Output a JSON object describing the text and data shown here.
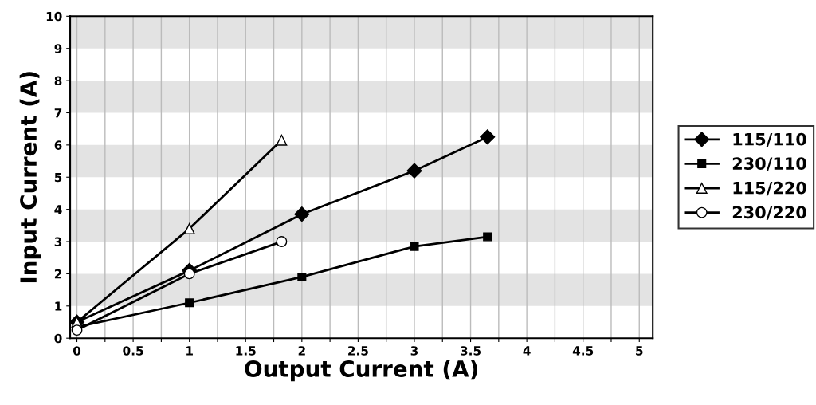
{
  "chart_data": {
    "type": "line",
    "xlabel": "Output Current (A)",
    "ylabel": "Input Current (A)",
    "xlim": [
      -0.06,
      5.12
    ],
    "ylim": [
      0,
      10
    ],
    "xticks": [
      0,
      {
        "value": 0.25,
        "label": null
      },
      0.5,
      {
        "value": 0.75,
        "label": null
      },
      1,
      {
        "value": 1.25,
        "label": null
      },
      1.5,
      {
        "value": 1.75,
        "label": null
      },
      2,
      {
        "value": 2.25,
        "label": null
      },
      2.5,
      {
        "value": 2.75,
        "label": null
      },
      3,
      {
        "value": 3.25,
        "label": null
      },
      3.5,
      {
        "value": 3.75,
        "label": null
      },
      4,
      {
        "value": 4.25,
        "label": null
      },
      4.5,
      {
        "value": 4.75,
        "label": null
      },
      5
    ],
    "yticks": [
      0,
      1,
      2,
      3,
      4,
      5,
      6,
      7,
      8,
      9,
      10
    ],
    "grid": "x",
    "legend": "right",
    "bands": [
      {
        "axis": "y",
        "from": 1,
        "to": 2,
        "color": "#e3e3e3"
      },
      {
        "axis": "y",
        "from": 3,
        "to": 4,
        "color": "#e3e3e3"
      },
      {
        "axis": "y",
        "from": 5,
        "to": 6,
        "color": "#e3e3e3"
      },
      {
        "axis": "y",
        "from": 7,
        "to": 8,
        "color": "#e3e3e3"
      },
      {
        "axis": "y",
        "from": 9,
        "to": 10,
        "color": "#e3e3e3"
      }
    ],
    "series": [
      {
        "name": "115/110",
        "color": "#000000",
        "marker": "diamond",
        "x": [
          0,
          1,
          2,
          3,
          3.65
        ],
        "values": [
          0.5,
          2.1,
          3.85,
          5.2,
          6.25
        ]
      },
      {
        "name": "230/110",
        "color": "#000000",
        "marker": "square",
        "x": [
          0,
          1,
          2,
          3,
          3.65
        ],
        "values": [
          0.35,
          1.1,
          1.9,
          2.85,
          3.15
        ]
      },
      {
        "name": "115/220",
        "color": "#000000",
        "marker": "triangle",
        "x": [
          0,
          1,
          1.82
        ],
        "values": [
          0.5,
          3.4,
          6.15
        ]
      },
      {
        "name": "230/220",
        "color": "#000000",
        "marker": "circle",
        "x": [
          0,
          1,
          1.82
        ],
        "values": [
          0.25,
          2.0,
          3.0
        ]
      }
    ]
  }
}
